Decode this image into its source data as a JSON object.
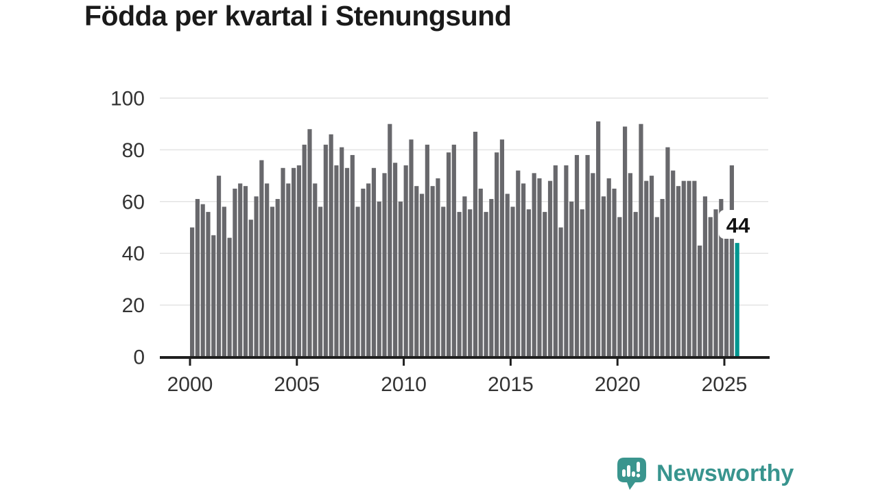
{
  "title": "Födda per kvartal i Stenungsund",
  "chart_data": {
    "type": "bar",
    "title": "Födda per kvartal i Stenungsund",
    "start_year": 2000,
    "start_quarter": 1,
    "values": [
      50,
      61,
      59,
      56,
      47,
      70,
      58,
      46,
      65,
      67,
      66,
      53,
      62,
      76,
      67,
      58,
      61,
      73,
      67,
      73,
      74,
      82,
      88,
      67,
      58,
      82,
      86,
      74,
      81,
      73,
      78,
      58,
      65,
      67,
      73,
      60,
      71,
      90,
      75,
      60,
      74,
      84,
      66,
      63,
      82,
      66,
      69,
      58,
      79,
      82,
      56,
      62,
      57,
      87,
      65,
      56,
      61,
      79,
      84,
      63,
      58,
      72,
      67,
      57,
      71,
      69,
      56,
      68,
      74,
      50,
      74,
      60,
      78,
      57,
      78,
      71,
      91,
      62,
      69,
      65,
      54,
      89,
      71,
      56,
      90,
      68,
      70,
      54,
      61,
      81,
      72,
      66,
      68,
      68,
      68,
      43,
      62,
      54,
      57,
      61,
      55,
      74,
      44
    ],
    "highlight_index": 102,
    "highlight_label": "44",
    "ylim": [
      0,
      100
    ],
    "yticks": [
      0,
      20,
      40,
      60,
      80,
      100
    ],
    "xtick_years": [
      2000,
      2005,
      2010,
      2015,
      2020,
      2025
    ],
    "grid": true,
    "legend": "none",
    "bar_color": "#68686c",
    "highlight_color": "#009690",
    "grid_color": "#e3e3e3",
    "axis_color": "#1f1f1f",
    "tick_label_color": "#333333",
    "annotation_text_color": "#111111"
  },
  "footer": {
    "brand": "Newsworthy"
  }
}
